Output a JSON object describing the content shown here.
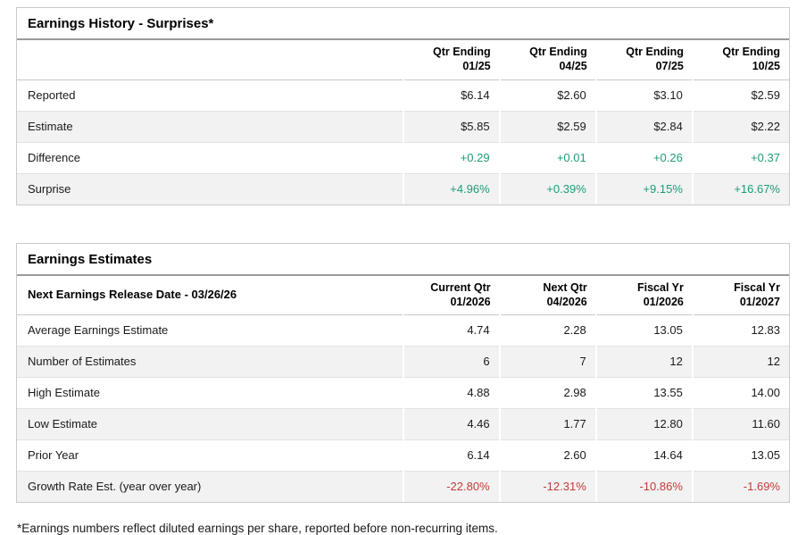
{
  "colors": {
    "positive_value": "#1e9b78",
    "negative_value": "#c43b38",
    "row_shade": "#f2f2f2",
    "border_outer": "#cbcbcb",
    "border_title": "#9a9a9a",
    "text": "#1a1a1a"
  },
  "history": {
    "title": "Earnings History - Surprises*",
    "columns": [
      {
        "line1": "Qtr Ending",
        "line2": "01/25"
      },
      {
        "line1": "Qtr Ending",
        "line2": "04/25"
      },
      {
        "line1": "Qtr Ending",
        "line2": "07/25"
      },
      {
        "line1": "Qtr Ending",
        "line2": "10/25"
      }
    ],
    "rows": [
      {
        "label": "Reported",
        "values": [
          "$6.14",
          "$2.60",
          "$3.10",
          "$2.59"
        ],
        "tone": "default"
      },
      {
        "label": "Estimate",
        "values": [
          "$5.85",
          "$2.59",
          "$2.84",
          "$2.22"
        ],
        "tone": "default"
      },
      {
        "label": "Difference",
        "values": [
          "+0.29",
          "+0.01",
          "+0.26",
          "+0.37"
        ],
        "tone": "positive"
      },
      {
        "label": "Surprise",
        "values": [
          "+4.96%",
          "+0.39%",
          "+9.15%",
          "+16.67%"
        ],
        "tone": "positive"
      }
    ]
  },
  "estimates": {
    "title": "Earnings Estimates",
    "label_header": "Next Earnings Release Date - 03/26/26",
    "columns": [
      {
        "line1": "Current Qtr",
        "line2": "01/2026"
      },
      {
        "line1": "Next Qtr",
        "line2": "04/2026"
      },
      {
        "line1": "Fiscal Yr",
        "line2": "01/2026"
      },
      {
        "line1": "Fiscal Yr",
        "line2": "01/2027"
      }
    ],
    "rows": [
      {
        "label": "Average Earnings Estimate",
        "values": [
          "4.74",
          "2.28",
          "13.05",
          "12.83"
        ],
        "tone": "default"
      },
      {
        "label": "Number of Estimates",
        "values": [
          "6",
          "7",
          "12",
          "12"
        ],
        "tone": "default"
      },
      {
        "label": "High Estimate",
        "values": [
          "4.88",
          "2.98",
          "13.55",
          "14.00"
        ],
        "tone": "default"
      },
      {
        "label": "Low Estimate",
        "values": [
          "4.46",
          "1.77",
          "12.80",
          "11.60"
        ],
        "tone": "default"
      },
      {
        "label": "Prior Year",
        "values": [
          "6.14",
          "2.60",
          "14.64",
          "13.05"
        ],
        "tone": "default"
      },
      {
        "label": "Growth Rate Est. (year over year)",
        "values": [
          "-22.80%",
          "-12.31%",
          "-10.86%",
          "-1.69%"
        ],
        "tone": "negative"
      }
    ]
  },
  "footnote": "*Earnings numbers reflect diluted earnings per share, reported before non-recurring items."
}
